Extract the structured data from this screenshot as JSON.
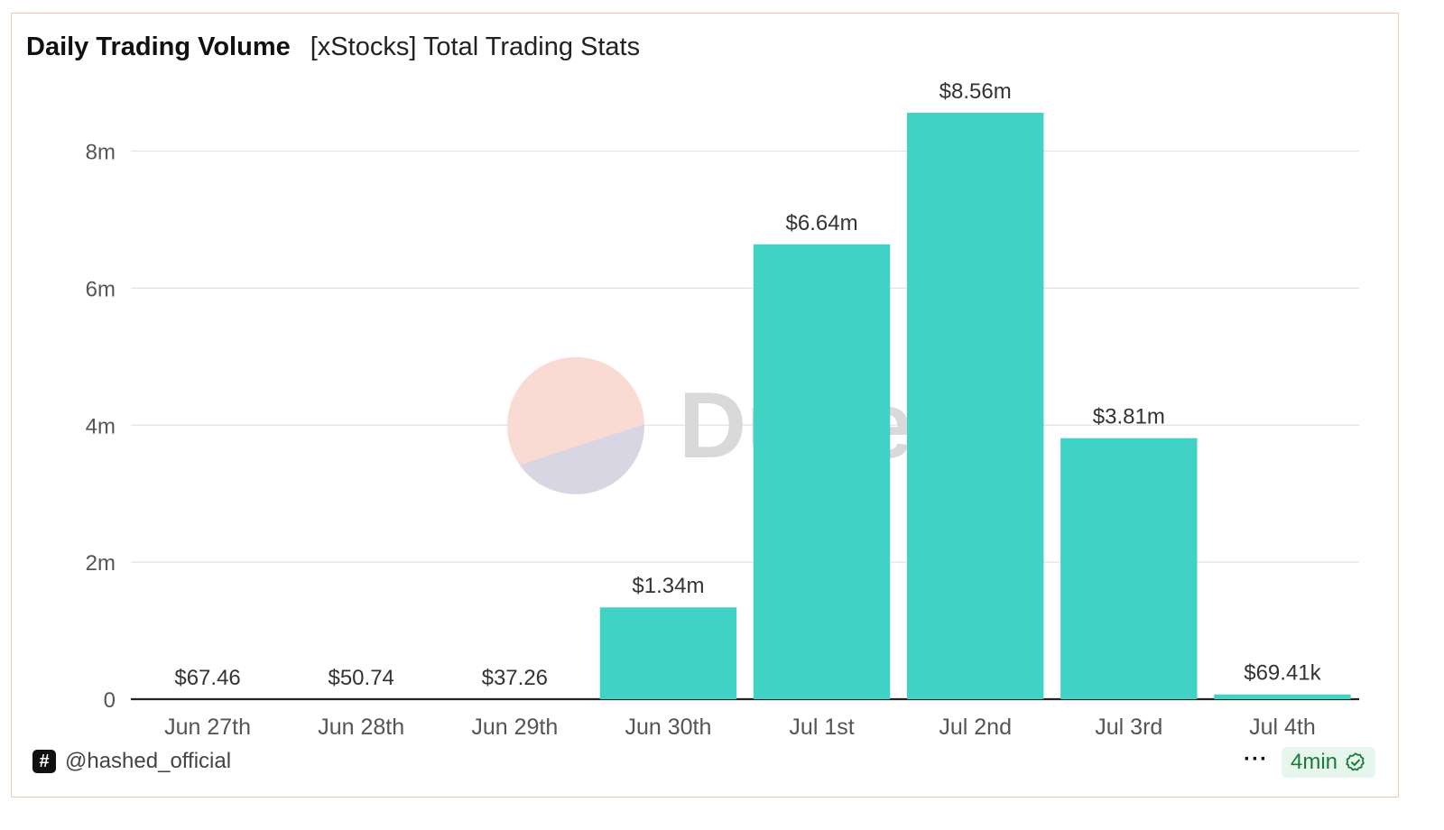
{
  "header": {
    "title": "Daily Trading Volume",
    "subtitle": "[xStocks] Total Trading Stats"
  },
  "watermark": {
    "text": "Dune"
  },
  "footer": {
    "handle": "@hashed_official",
    "badge_glyph": "#",
    "more_label": "···",
    "refresh_label": "4min",
    "refresh_icon": "check-badge-icon"
  },
  "colors": {
    "bar": "#40d2c5",
    "grid": "#e3e3e3",
    "axis": "#222222",
    "watermark_top": "#fadbd4",
    "watermark_bottom": "#d7d6e2",
    "watermark_text": "#d9d9d9",
    "refresh_bg": "#e7f6ec",
    "refresh_fg": "#1b7a3a"
  },
  "chart_data": {
    "type": "bar",
    "title": "Daily Trading Volume",
    "subtitle": "[xStocks] Total Trading Stats",
    "categories": [
      "Jun 27th",
      "Jun 28th",
      "Jun 29th",
      "Jun 30th",
      "Jul 1st",
      "Jul 2nd",
      "Jul 3rd",
      "Jul 4th"
    ],
    "values": [
      67.46,
      50.74,
      37.26,
      1340000,
      6640000,
      8560000,
      3810000,
      69410
    ],
    "value_labels": [
      "$67.46",
      "$50.74",
      "$37.26",
      "$1.34m",
      "$6.64m",
      "$8.56m",
      "$3.81m",
      "$69.41k"
    ],
    "yticks": [
      0,
      2000000,
      4000000,
      6000000,
      8000000
    ],
    "ytick_labels": [
      "0",
      "2m",
      "4m",
      "6m",
      "8m"
    ],
    "ylim": [
      0,
      8560000
    ],
    "grid": true,
    "legend": "none",
    "xlabel": "",
    "ylabel": ""
  }
}
